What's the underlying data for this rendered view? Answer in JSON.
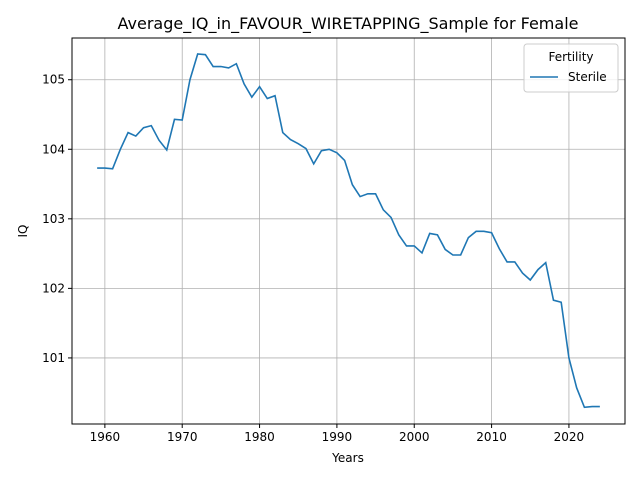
{
  "chart_data": {
    "type": "line",
    "title": "Average_IQ_in_FAVOUR_WIRETAPPING_Sample for Female",
    "xlabel": "Years",
    "ylabel": "IQ",
    "xlim": [
      1955.75,
      2027.25
    ],
    "ylim": [
      100.05,
      105.6
    ],
    "xticks": [
      1960,
      1970,
      1980,
      1990,
      2000,
      2010,
      2020
    ],
    "yticks": [
      101,
      102,
      103,
      104,
      105
    ],
    "grid": true,
    "legend": {
      "title": "Fertility",
      "placement": "top-right"
    },
    "series": [
      {
        "name": "Sterile",
        "color": "#1f77b4",
        "x": [
          1959,
          1960,
          1961,
          1962,
          1963,
          1964,
          1965,
          1966,
          1967,
          1968,
          1969,
          1970,
          1971,
          1972,
          1973,
          1974,
          1975,
          1976,
          1977,
          1978,
          1979,
          1980,
          1981,
          1982,
          1983,
          1984,
          1985,
          1986,
          1987,
          1988,
          1989,
          1990,
          1991,
          1992,
          1993,
          1994,
          1995,
          1996,
          1997,
          1998,
          1999,
          2000,
          2001,
          2002,
          2003,
          2004,
          2005,
          2006,
          2007,
          2008,
          2009,
          2010,
          2011,
          2012,
          2013,
          2014,
          2015,
          2016,
          2017,
          2018,
          2019,
          2020,
          2021,
          2022,
          2023,
          2024
        ],
        "y": [
          103.73,
          103.73,
          103.72,
          104.0,
          104.24,
          104.19,
          104.31,
          104.34,
          104.13,
          103.99,
          104.43,
          104.42,
          105.0,
          105.37,
          105.36,
          105.19,
          105.19,
          105.17,
          105.23,
          104.94,
          104.75,
          104.9,
          104.73,
          104.77,
          104.24,
          104.14,
          104.08,
          104.01,
          103.79,
          103.98,
          104.0,
          103.95,
          103.84,
          103.49,
          103.32,
          103.36,
          103.36,
          103.13,
          103.02,
          102.77,
          102.61,
          102.61,
          102.51,
          102.79,
          102.77,
          102.56,
          102.48,
          102.48,
          102.73,
          102.82,
          102.82,
          102.8,
          102.57,
          102.38,
          102.38,
          102.22,
          102.12,
          102.27,
          102.37,
          101.83,
          101.8,
          101.0,
          100.57,
          100.29,
          100.3,
          100.3
        ]
      }
    ]
  }
}
